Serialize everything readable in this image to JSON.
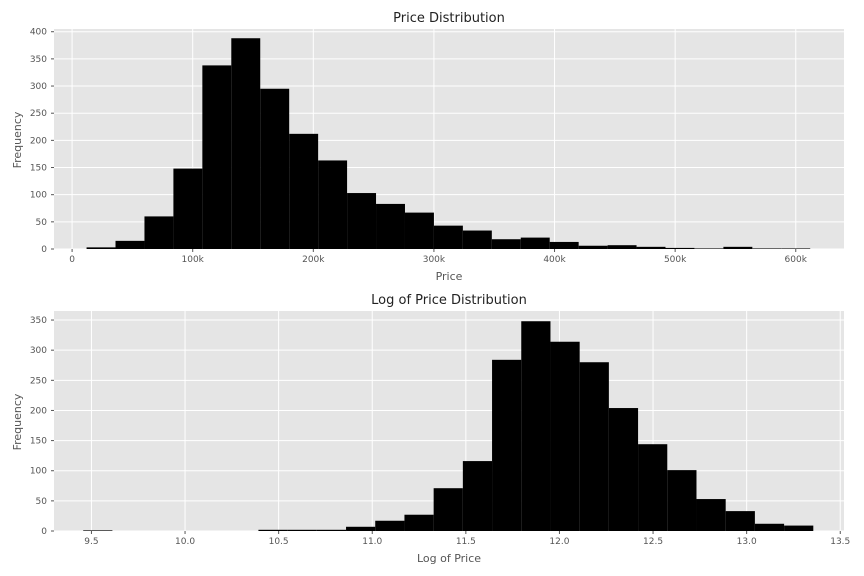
{
  "chart_data": [
    {
      "type": "bar",
      "title": "Price Distribution",
      "xlabel": "Price",
      "ylabel": "Frequency",
      "xlim": [
        -15000,
        640000
      ],
      "ylim": [
        0,
        405
      ],
      "xticks": [
        0,
        100000,
        200000,
        300000,
        400000,
        500000,
        600000
      ],
      "xtick_labels": [
        "0",
        "100k",
        "200k",
        "300k",
        "400k",
        "500k",
        "600k"
      ],
      "yticks": [
        0,
        50,
        100,
        150,
        200,
        250,
        300,
        350,
        400
      ],
      "bin_edges": [
        12000,
        36000,
        60000,
        84000,
        108000,
        132000,
        156000,
        180000,
        204000,
        228000,
        252000,
        276000,
        300000,
        324000,
        348000,
        372000,
        396000,
        420000,
        444000,
        468000,
        492000,
        516000,
        540000,
        564000,
        588000,
        612000
      ],
      "values": [
        3,
        15,
        60,
        148,
        338,
        388,
        295,
        212,
        163,
        103,
        83,
        67,
        43,
        34,
        18,
        21,
        13,
        6,
        7,
        4,
        2,
        1,
        4,
        1,
        1
      ],
      "grid": true,
      "color": "#000000"
    },
    {
      "type": "bar",
      "title": "Log of Price Distribution",
      "xlabel": "Log of Price",
      "ylabel": "Frequency",
      "xlim": [
        9.3,
        13.52
      ],
      "ylim": [
        0,
        365
      ],
      "xticks": [
        9.5,
        10.0,
        10.5,
        11.0,
        11.5,
        12.0,
        12.5,
        13.0,
        13.5
      ],
      "xtick_labels": [
        "9.5",
        "10.0",
        "10.5",
        "11.0",
        "11.5",
        "12.0",
        "12.5",
        "13.0",
        "13.5"
      ],
      "yticks": [
        0,
        50,
        100,
        150,
        200,
        250,
        300,
        350
      ],
      "bin_edges": [
        9.456,
        9.612,
        9.768,
        9.924,
        10.08,
        10.236,
        10.392,
        10.548,
        10.704,
        10.86,
        11.016,
        11.172,
        11.328,
        11.484,
        11.64,
        11.796,
        11.952,
        12.108,
        12.264,
        12.42,
        12.576,
        12.732,
        12.888,
        13.044,
        13.2,
        13.356
      ],
      "values": [
        1,
        0,
        0,
        0,
        0,
        0,
        2,
        2,
        2,
        7,
        17,
        27,
        71,
        116,
        284,
        348,
        314,
        280,
        204,
        144,
        101,
        53,
        33,
        12,
        9
      ],
      "grid": true,
      "color": "#000000"
    }
  ]
}
